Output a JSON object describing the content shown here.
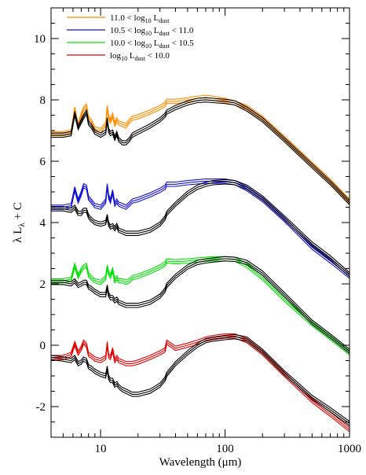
{
  "chart_data": {
    "type": "line",
    "title": "",
    "xlabel": "Wavelength (μm)",
    "ylabel_parts": {
      "main": "λ L",
      "sub": "λ",
      "tail": " + C"
    },
    "xscale": "log",
    "xlim": [
      4,
      1000
    ],
    "ylim": [
      -3,
      11
    ],
    "x_ticks": [
      10,
      100,
      1000
    ],
    "x_tick_labels": [
      "10",
      "100",
      "1000"
    ],
    "y_ticks": [
      -2,
      0,
      2,
      4,
      6,
      8,
      10
    ],
    "y_tick_labels": [
      "-2",
      "0",
      "2",
      "4",
      "6",
      "8",
      "10"
    ],
    "grid": false,
    "legend_position": "top-left",
    "colors": {
      "orange": "#ff8c00",
      "blue": "#1010d0",
      "green": "#00e000",
      "red": "#e00000",
      "black": "#000000"
    },
    "series": [
      {
        "name": "11.0 < log10 Ldust",
        "legend": {
          "pre": "11.0 < log",
          "sub": "10",
          "mid": " L",
          "sub2": "dust",
          "post": ""
        },
        "color": "#ff8c00",
        "offset": 7.9,
        "x": [
          4,
          5,
          5.8,
          6.2,
          6.6,
          7.0,
          7.3,
          7.7,
          8.0,
          8.4,
          9,
          10,
          11.0,
          11.3,
          11.6,
          12.0,
          12.5,
          13.0,
          13.5,
          14,
          15,
          16,
          17,
          18,
          20,
          25,
          30,
          33,
          34,
          40,
          50,
          60,
          70,
          80,
          100,
          120,
          150,
          200,
          300,
          500,
          700,
          1000
        ],
        "y": [
          6.9,
          6.9,
          6.95,
          7.7,
          7.15,
          7.5,
          7.7,
          7.8,
          7.4,
          7.3,
          7.05,
          7.0,
          7.2,
          7.75,
          7.45,
          7.3,
          7.5,
          7.2,
          7.35,
          7.25,
          7.2,
          7.15,
          7.3,
          7.4,
          7.45,
          7.6,
          7.75,
          7.85,
          7.95,
          7.95,
          8.0,
          8.05,
          8.08,
          8.05,
          7.98,
          7.9,
          7.75,
          7.4,
          6.75,
          5.9,
          5.35,
          4.7
        ],
        "template": [
          6.85,
          6.85,
          6.9,
          7.55,
          7.1,
          7.3,
          7.45,
          7.6,
          7.25,
          7.15,
          6.95,
          6.85,
          6.95,
          7.35,
          7.0,
          6.9,
          6.95,
          6.75,
          6.9,
          6.7,
          6.6,
          6.6,
          6.7,
          6.85,
          6.95,
          7.15,
          7.35,
          7.5,
          7.6,
          7.75,
          7.9,
          7.98,
          8.0,
          7.98,
          7.95,
          7.9,
          7.7,
          7.35,
          6.7,
          5.85,
          5.3,
          4.65
        ]
      },
      {
        "name": "10.5 < log10 Ldust < 11.0",
        "legend": {
          "pre": "10.5 < log",
          "sub": "10",
          "mid": " L",
          "sub2": "dust",
          "post": " < 11.0"
        },
        "color": "#1010d0",
        "offset": 5.3,
        "x": [
          4,
          5,
          5.8,
          6.2,
          6.6,
          7.0,
          7.3,
          7.7,
          8.0,
          8.4,
          9,
          10,
          11.0,
          11.3,
          11.6,
          12.0,
          12.5,
          13.0,
          13.5,
          14,
          15,
          16,
          17,
          18,
          20,
          25,
          30,
          33,
          34,
          40,
          50,
          60,
          70,
          80,
          100,
          120,
          150,
          200,
          300,
          500,
          700,
          1000
        ],
        "y": [
          4.5,
          4.5,
          4.55,
          5.1,
          4.7,
          4.95,
          5.2,
          5.15,
          4.8,
          4.7,
          4.55,
          4.5,
          4.7,
          5.2,
          4.85,
          4.7,
          5.0,
          4.6,
          4.7,
          4.6,
          4.55,
          4.5,
          4.6,
          4.7,
          4.75,
          4.9,
          5.05,
          5.15,
          5.25,
          5.25,
          5.3,
          5.33,
          5.35,
          5.35,
          5.35,
          5.3,
          5.1,
          4.75,
          4.1,
          3.2,
          2.75,
          2.25
        ],
        "template": [
          4.45,
          4.45,
          4.4,
          4.5,
          4.3,
          4.3,
          4.4,
          4.4,
          4.2,
          4.1,
          4.0,
          3.95,
          4.0,
          4.2,
          3.95,
          3.85,
          3.9,
          3.8,
          3.9,
          3.75,
          3.7,
          3.65,
          3.65,
          3.65,
          3.65,
          3.75,
          3.95,
          4.15,
          4.3,
          4.6,
          4.95,
          5.15,
          5.25,
          5.3,
          5.33,
          5.3,
          5.15,
          4.8,
          4.15,
          3.3,
          2.85,
          2.3
        ]
      },
      {
        "name": "10.0 < log10 Ldust < 10.5",
        "legend": {
          "pre": "10.0 < log",
          "sub": "10",
          "mid": " L",
          "sub2": "dust",
          "post": " < 10.5"
        },
        "color": "#00e000",
        "offset": 2.8,
        "x": [
          4,
          5,
          5.8,
          6.2,
          6.6,
          7.0,
          7.3,
          7.7,
          8.0,
          8.4,
          9,
          10,
          11.0,
          11.3,
          11.6,
          12.0,
          12.5,
          13.0,
          13.5,
          14,
          15,
          16,
          17,
          18,
          20,
          25,
          30,
          33,
          34,
          40,
          50,
          60,
          70,
          80,
          100,
          120,
          150,
          200,
          300,
          500,
          700,
          1000
        ],
        "y": [
          2.1,
          2.1,
          2.15,
          2.6,
          2.25,
          2.45,
          2.55,
          2.6,
          2.3,
          2.2,
          2.1,
          2.05,
          2.2,
          2.55,
          2.35,
          2.25,
          2.45,
          2.1,
          2.2,
          2.1,
          2.1,
          2.05,
          2.1,
          2.2,
          2.25,
          2.4,
          2.55,
          2.65,
          2.75,
          2.72,
          2.75,
          2.78,
          2.8,
          2.82,
          2.82,
          2.8,
          2.6,
          2.2,
          1.5,
          0.7,
          0.25,
          -0.25
        ],
        "template": [
          2.05,
          2.05,
          2.0,
          2.1,
          1.95,
          2.0,
          2.05,
          2.05,
          1.9,
          1.85,
          1.75,
          1.65,
          1.65,
          1.9,
          1.65,
          1.55,
          1.55,
          1.45,
          1.5,
          1.4,
          1.35,
          1.3,
          1.3,
          1.3,
          1.3,
          1.4,
          1.6,
          1.8,
          1.95,
          2.25,
          2.55,
          2.7,
          2.75,
          2.78,
          2.82,
          2.8,
          2.7,
          2.35,
          1.65,
          0.75,
          0.3,
          -0.2
        ]
      },
      {
        "name": "log10 Ldust < 10.0",
        "legend": {
          "pre": "log",
          "sub": "10",
          "mid": " L",
          "sub2": "dust",
          "post": " < 10.0"
        },
        "color": "#e00000",
        "offset": 0.3,
        "x": [
          4,
          5,
          5.8,
          6.2,
          6.6,
          7.0,
          7.3,
          7.7,
          8.0,
          8.4,
          9,
          10,
          11.0,
          11.3,
          11.6,
          12.0,
          12.5,
          13.0,
          13.5,
          14,
          15,
          16,
          17,
          18,
          20,
          25,
          30,
          33,
          34,
          40,
          50,
          60,
          70,
          80,
          100,
          120,
          150,
          200,
          300,
          500,
          700,
          1000
        ],
        "y": [
          -0.4,
          -0.4,
          -0.3,
          0.05,
          -0.25,
          -0.1,
          0.1,
          0.0,
          -0.3,
          -0.35,
          -0.45,
          -0.5,
          -0.4,
          0.05,
          -0.35,
          -0.4,
          -0.15,
          -0.5,
          -0.4,
          -0.5,
          -0.55,
          -0.6,
          -0.6,
          -0.6,
          -0.55,
          -0.4,
          -0.25,
          -0.15,
          0.1,
          -0.1,
          0.0,
          0.1,
          0.2,
          0.25,
          0.3,
          0.3,
          0.15,
          -0.25,
          -0.95,
          -1.8,
          -2.25,
          -2.75
        ],
        "template": [
          -0.4,
          -0.45,
          -0.5,
          -0.4,
          -0.6,
          -0.55,
          -0.45,
          -0.5,
          -0.7,
          -0.75,
          -0.85,
          -0.95,
          -1.0,
          -0.75,
          -1.05,
          -1.15,
          -1.15,
          -1.3,
          -1.25,
          -1.35,
          -1.45,
          -1.5,
          -1.55,
          -1.6,
          -1.6,
          -1.5,
          -1.3,
          -1.1,
          -0.95,
          -0.6,
          -0.25,
          0.0,
          0.15,
          0.2,
          0.25,
          0.28,
          0.2,
          -0.2,
          -0.9,
          -1.7,
          -2.1,
          -2.55
        ]
      }
    ]
  }
}
